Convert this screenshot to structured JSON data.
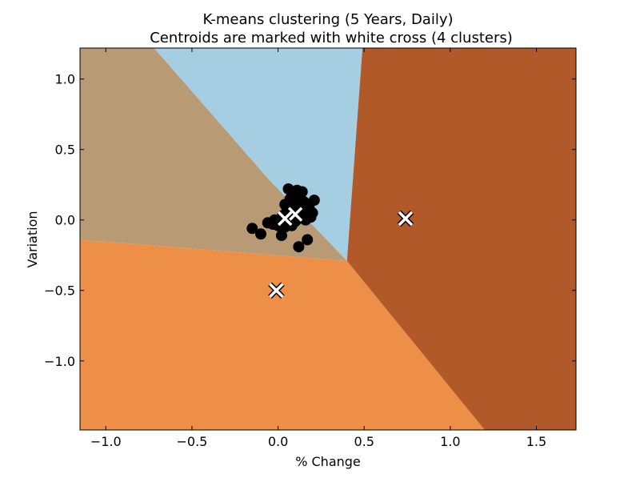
{
  "chart_data": {
    "type": "scatter",
    "title_lines": [
      "K-means clustering (5 Years, Daily)",
      "Centroids are marked with white cross (4 clusters)"
    ],
    "xlabel": "% Change",
    "ylabel": "Variation",
    "xlim": [
      -1.15,
      1.73
    ],
    "ylim": [
      -1.49,
      1.22
    ],
    "x_ticks": [
      -1.0,
      -0.5,
      0.0,
      0.5,
      1.0,
      1.5
    ],
    "x_tick_labels": [
      "−1.0",
      "−0.5",
      "0.0",
      "0.5",
      "1.0",
      "1.5"
    ],
    "y_ticks": [
      1.0,
      0.5,
      0.0,
      -0.5,
      -1.0
    ],
    "y_tick_labels": [
      "1.0",
      "0.5",
      "0.0",
      "−0.5",
      "−1.0"
    ],
    "grid": false,
    "legend": "none",
    "region_colors": {
      "tan": "#b89b74",
      "light_blue": "#a6cee3",
      "orange": "#ed8f47",
      "brown": "#b15928"
    },
    "region_vertices": {
      "tan": [
        [
          -1.15,
          1.22
        ],
        [
          -0.72,
          1.22
        ],
        [
          -0.055,
          0.29
        ],
        [
          0.4,
          -0.29
        ],
        [
          -1.15,
          -0.14
        ]
      ],
      "light_blue": [
        [
          -0.72,
          1.22
        ],
        [
          0.49,
          1.22
        ],
        [
          0.4,
          -0.29
        ],
        [
          -0.055,
          0.29
        ]
      ],
      "orange": [
        [
          -1.15,
          -0.14
        ],
        [
          0.4,
          -0.29
        ],
        [
          1.2,
          -1.49
        ],
        [
          -1.15,
          -1.49
        ]
      ],
      "brown": [
        [
          0.49,
          1.22
        ],
        [
          1.73,
          1.22
        ],
        [
          1.73,
          -1.49
        ],
        [
          1.2,
          -1.49
        ],
        [
          0.4,
          -0.29
        ]
      ]
    },
    "points": [
      [
        0.06,
        0.22
      ],
      [
        0.11,
        0.21
      ],
      [
        0.14,
        0.2
      ],
      [
        0.09,
        0.18
      ],
      [
        0.21,
        0.14
      ],
      [
        0.07,
        0.15
      ],
      [
        0.12,
        0.14
      ],
      [
        0.15,
        0.13
      ],
      [
        0.04,
        0.11
      ],
      [
        0.1,
        0.11
      ],
      [
        0.13,
        0.1
      ],
      [
        0.18,
        0.09
      ],
      [
        0.08,
        0.08
      ],
      [
        0.16,
        0.07
      ],
      [
        0.2,
        0.05
      ],
      [
        0.05,
        0.06
      ],
      [
        0.11,
        0.05
      ],
      [
        0.14,
        0.04
      ],
      [
        0.19,
        0.02
      ],
      [
        0.03,
        0.03
      ],
      [
        0.08,
        0.02
      ],
      [
        0.12,
        0.01
      ],
      [
        0.16,
        0.0
      ],
      [
        -0.02,
        0.0
      ],
      [
        0.02,
        -0.01
      ],
      [
        0.06,
        -0.02
      ],
      [
        0.1,
        -0.01
      ],
      [
        -0.06,
        -0.02
      ],
      [
        -0.03,
        -0.03
      ],
      [
        0.0,
        -0.04
      ],
      [
        0.04,
        -0.05
      ],
      [
        0.08,
        -0.04
      ],
      [
        -0.15,
        -0.06
      ],
      [
        -0.1,
        -0.1
      ],
      [
        0.02,
        -0.11
      ],
      [
        0.17,
        -0.14
      ],
      [
        0.12,
        -0.19
      ]
    ],
    "centroids": [
      [
        0.74,
        0.01
      ],
      [
        -0.01,
        -0.5
      ],
      [
        0.1,
        0.04
      ],
      [
        0.04,
        0.01
      ]
    ]
  }
}
